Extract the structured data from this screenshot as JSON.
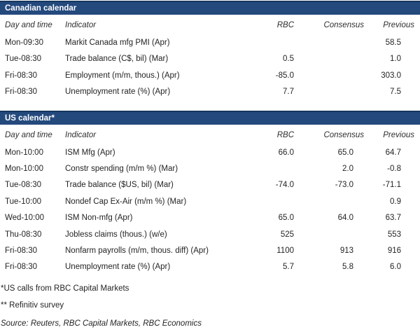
{
  "colors": {
    "title_bar_bg": "#24497D",
    "title_bar_top_border": "#16365C",
    "title_text": "#FFFFFF",
    "body_text": "#242424"
  },
  "columns": {
    "day": "Day and time",
    "indicator": "Indicator",
    "rbc": "RBC",
    "consensus": "Consensus",
    "previous": "Previous"
  },
  "sections": [
    {
      "title": "Canadian calendar",
      "rows": [
        {
          "day": "Mon-09:30",
          "indicator": "Markit Canada mfg PMI (Apr)",
          "rbc": "",
          "consensus": "",
          "previous": "58.5"
        },
        {
          "day": "Tue-08:30",
          "indicator": "Trade balance (C$, bil) (Mar)",
          "rbc": "0.5",
          "consensus": "",
          "previous": "1.0"
        },
        {
          "day": "Fri-08:30",
          "indicator": "Employment (m/m, thous.) (Apr)",
          "rbc": "-85.0",
          "consensus": "",
          "previous": "303.0"
        },
        {
          "day": "Fri-08:30",
          "indicator": "Unemployment rate (%) (Apr)",
          "rbc": "7.7",
          "consensus": "",
          "previous": "7.5"
        }
      ]
    },
    {
      "title": "US calendar*",
      "rows": [
        {
          "day": "Mon-10:00",
          "indicator": "ISM Mfg (Apr)",
          "rbc": "66.0",
          "consensus": "65.0",
          "previous": "64.7"
        },
        {
          "day": "Mon-10:00",
          "indicator": "Constr spending (m/m %) (Mar)",
          "rbc": "",
          "consensus": "2.0",
          "previous": "-0.8"
        },
        {
          "day": "Tue-08:30",
          "indicator": "Trade balance ($US, bil) (Mar)",
          "rbc": "-74.0",
          "consensus": "-73.0",
          "previous": "-71.1"
        },
        {
          "day": "Tue-10:00",
          "indicator": "Nondef Cap Ex-Air (m/m %) (Mar)",
          "rbc": "",
          "consensus": "",
          "previous": "0.9"
        },
        {
          "day": "Wed-10:00",
          "indicator": "ISM Non-mfg (Apr)",
          "rbc": "65.0",
          "consensus": "64.0",
          "previous": "63.7"
        },
        {
          "day": "Thu-08:30",
          "indicator": "Jobless claims (thous.) (w/e)",
          "rbc": "525",
          "consensus": "",
          "previous": "553"
        },
        {
          "day": "Fri-08:30",
          "indicator": "Nonfarm payrolls (m/m, thous. diff) (Apr)",
          "rbc": "1100",
          "consensus": "913",
          "previous": "916"
        },
        {
          "day": "Fri-08:30",
          "indicator": "Unemployment rate (%) (Apr)",
          "rbc": "5.7",
          "consensus": "5.8",
          "previous": "6.0"
        }
      ]
    }
  ],
  "footnotes": [
    "*US calls from RBC Capital Markets",
    "** Refinitiv survey"
  ],
  "source": "Source: Reuters, RBC Capital Markets, RBC Economics"
}
